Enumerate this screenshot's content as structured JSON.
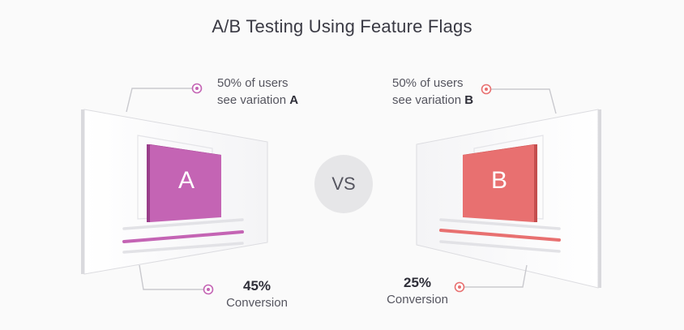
{
  "title": "A/B Testing Using Feature Flags",
  "vs_label": "VS",
  "variation_a": {
    "letter": "A",
    "caption_line1": "50% of users",
    "caption_line2_prefix": "see variation ",
    "caption_line2_highlight": "A",
    "conversion_value": "45%",
    "conversion_label": "Conversion",
    "accent_color": "#c464b4"
  },
  "variation_b": {
    "letter": "B",
    "caption_line1": "50% of users",
    "caption_line2_prefix": "see variation ",
    "caption_line2_highlight": "B",
    "conversion_value": "25%",
    "conversion_label": "Conversion",
    "accent_color": "#e87070"
  }
}
